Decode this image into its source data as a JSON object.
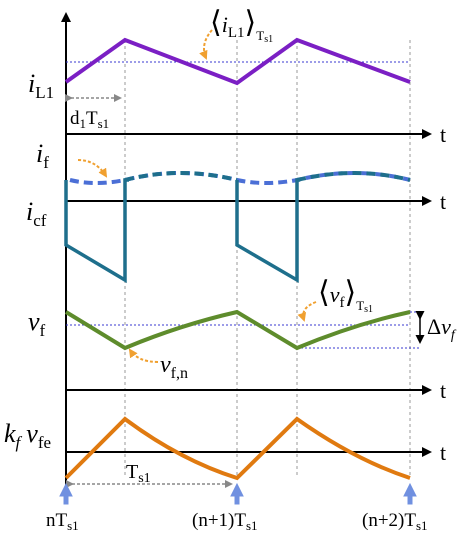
{
  "labels": {
    "i_l1_sym": "i",
    "i_l1_sub": "L1",
    "avg_il1_sym": "i",
    "avg_il1_sub": "L1",
    "avg_il1_tail": "T",
    "avg_il1_tail_sub": "s1",
    "d1_main": "d",
    "d1_sub": "1",
    "d1_t": "T",
    "d1_t_sub": "s1",
    "i_f_sym": "i",
    "i_f_sub": "f",
    "i_cf_sym": "i",
    "i_cf_sub": "cf",
    "v_f_sym": "v",
    "v_f_sub": "f",
    "avg_vf_sym": "v",
    "avg_vf_sub": "f",
    "avg_vf_tail": "T",
    "avg_vf_tail_sub": "s1",
    "delta_vf_delta": "Δ",
    "delta_vf_sym": "v",
    "delta_vf_sub": "f",
    "vfn_sym": "v",
    "vfn_sub": "f,n",
    "kf_sym": "k",
    "kf_sub": "f",
    "vfe_sym": "v",
    "vfe_sub": "fe",
    "ts1_main": "T",
    "ts1_sub": "s1",
    "t_axis": "t",
    "tick_n_pre": "nT",
    "tick_n_sub": "s1",
    "tick_n1_pre": "(n+1)T",
    "tick_n1_sub": "s1",
    "tick_n2_pre": "(n+2)T",
    "tick_n2_sub": "s1"
  },
  "colors": {
    "il1": "#7B1FC4",
    "if": "#4B6FD6",
    "icf": "#1E6F8C",
    "vf": "#5E8C2C",
    "vfe": "#E07A10",
    "annot": "#F0A030",
    "marker": "#7090E0",
    "guide": "#3A3AD0"
  }
}
